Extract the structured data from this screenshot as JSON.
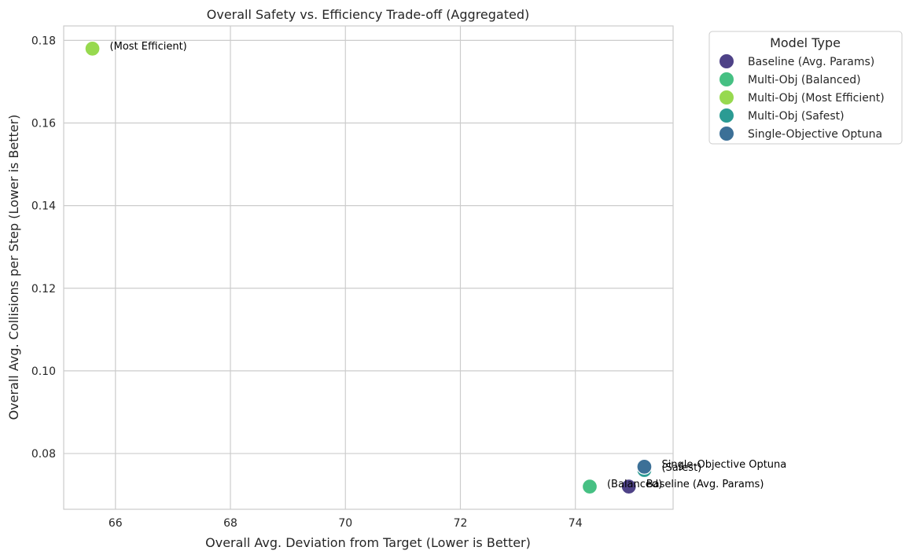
{
  "chart_data": {
    "type": "scatter",
    "title": "Overall Safety vs. Efficiency Trade-off (Aggregated)",
    "xlabel": "Overall Avg. Deviation from Target (Lower is Better)",
    "ylabel": "Overall Avg. Collisions per Step (Lower is Better)",
    "xlim": [
      65.1,
      75.7
    ],
    "ylim": [
      0.0665,
      0.1835
    ],
    "xticks": [
      66,
      68,
      70,
      72,
      74
    ],
    "xtick_labels": [
      "66",
      "68",
      "70",
      "72",
      "74"
    ],
    "yticks": [
      0.08,
      0.1,
      0.12,
      0.14,
      0.16,
      0.18
    ],
    "ytick_labels": [
      "0.08",
      "0.10",
      "0.12",
      "0.14",
      "0.16",
      "0.18"
    ],
    "grid": true,
    "legend": {
      "title": "Model Type",
      "placement": "outside-top-right",
      "entries": [
        {
          "label": "Baseline (Avg. Params)",
          "color": "#4e4287"
        },
        {
          "label": "Multi-Obj (Balanced)",
          "color": "#46c083"
        },
        {
          "label": "Multi-Obj (Most Efficient)",
          "color": "#97d94f"
        },
        {
          "label": "Multi-Obj (Safest)",
          "color": "#2b9b93"
        },
        {
          "label": "Single-Objective Optuna",
          "color": "#3c7097"
        }
      ]
    },
    "series": [
      {
        "name": "Multi-Obj (Most Efficient)",
        "x": 65.6,
        "y": 0.178,
        "color": "#97d94f",
        "annotation": "(Most Efficient)"
      },
      {
        "name": "Multi-Obj (Balanced)",
        "x": 74.25,
        "y": 0.072,
        "color": "#46c083",
        "annotation": "(Balanced)"
      },
      {
        "name": "Baseline (Avg. Params)",
        "x": 74.93,
        "y": 0.072,
        "color": "#4e4287",
        "annotation": "Baseline (Avg. Params)"
      },
      {
        "name": "Multi-Obj (Safest)",
        "x": 75.2,
        "y": 0.076,
        "color": "#2b9b93",
        "annotation": "(Safest)"
      },
      {
        "name": "Single-Objective Optuna",
        "x": 75.2,
        "y": 0.0768,
        "color": "#3c7097",
        "annotation": "Single-Objective Optuna"
      }
    ]
  }
}
